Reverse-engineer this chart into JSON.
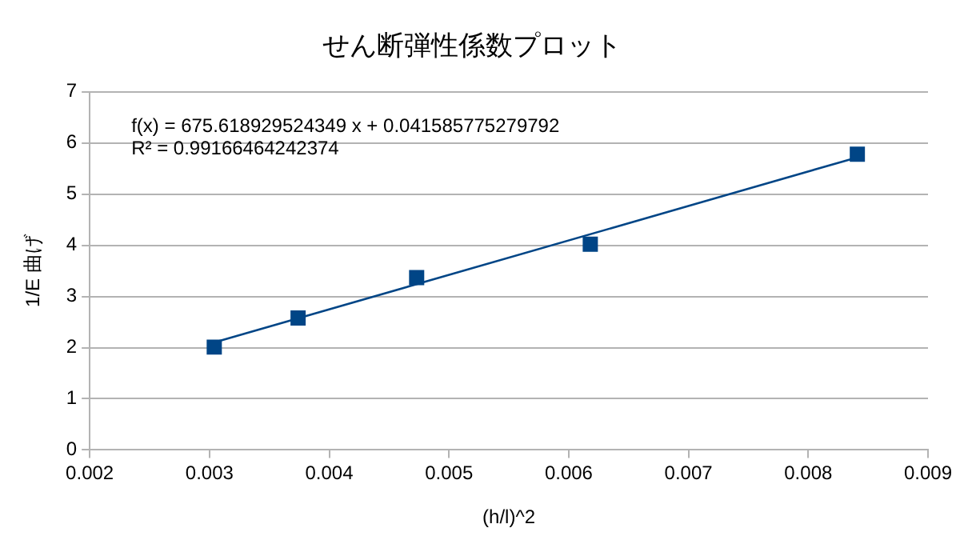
{
  "chart_data": {
    "type": "scatter",
    "title": "せん断弾性係数プロット",
    "xlabel": "(h/l)^2",
    "ylabel": "1/E 曲げ",
    "series": [
      {
        "color": "#004586",
        "x": [
          0.00304,
          0.00374,
          0.00473,
          0.00618,
          0.00841
        ],
        "values": [
          2.01,
          2.58,
          3.37,
          4.02,
          5.78
        ],
        "marker": "square"
      },
      {
        "type": "line",
        "color": "#004586",
        "x": [
          0.00304,
          0.00841
        ],
        "values": [
          2.1,
          5.72
        ],
        "marker": "none"
      }
    ],
    "xlim": [
      0.002,
      0.009
    ],
    "xticks": [
      0.002,
      0.003,
      0.004,
      0.005,
      0.006,
      0.007,
      0.008,
      0.009
    ],
    "ylim": [
      0,
      7
    ],
    "yticks": [
      0,
      1,
      2,
      3,
      4,
      5,
      6,
      7
    ],
    "grid": "y",
    "legend": false,
    "annotations": [
      "f(x) = 675.618929524349 x + 0.041585775279792",
      "R² = 0.99166464242374"
    ]
  }
}
